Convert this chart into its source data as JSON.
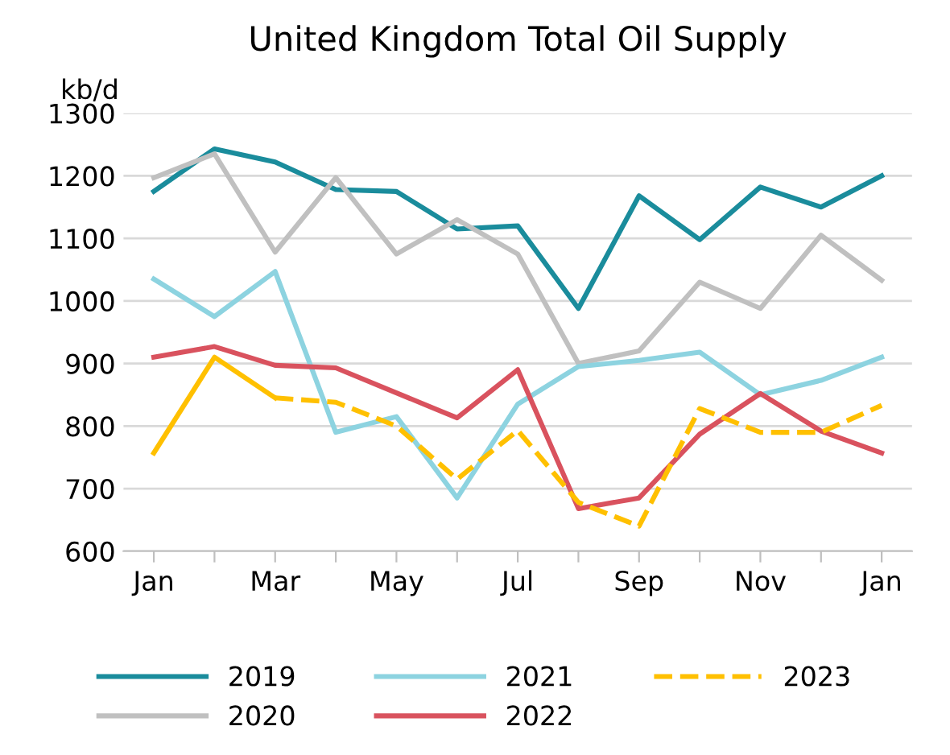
{
  "chart_data": {
    "type": "line",
    "title": "United Kingdom Total Oil Supply",
    "ylabel": "kb/d",
    "categories": [
      "Jan",
      null,
      "Mar",
      null,
      "May",
      null,
      "Jul",
      null,
      "Sep",
      null,
      "Nov",
      null,
      "Jan"
    ],
    "ylim": [
      600,
      1300
    ],
    "yticks": [
      600,
      700,
      800,
      900,
      1000,
      1100,
      1200,
      1300
    ],
    "grid": "y",
    "legend": "bottom",
    "series": [
      {
        "name": "2019",
        "color": "#1a8c9c",
        "line_style": "solid",
        "values": [
          1175,
          1243,
          1222,
          1178,
          1175,
          1115,
          1120,
          988,
          1168,
          1098,
          1182,
          1150,
          1200
        ]
      },
      {
        "name": "2020",
        "color": "#c0c0c0",
        "line_style": "solid",
        "values": [
          1197,
          1235,
          1078,
          1197,
          1075,
          1130,
          1075,
          900,
          920,
          1030,
          988,
          1105,
          1033
        ]
      },
      {
        "name": "2021",
        "color": "#8dd3e0",
        "line_style": "solid",
        "values": [
          1035,
          975,
          1047,
          790,
          815,
          685,
          835,
          895,
          905,
          918,
          850,
          873,
          910
        ]
      },
      {
        "name": "2022",
        "color": "#d9525e",
        "line_style": "solid",
        "values": [
          910,
          927,
          897,
          893,
          853,
          813,
          890,
          668,
          685,
          787,
          852,
          792,
          757
        ]
      },
      {
        "color": "#ffc000",
        "line_style": "solid",
        "values": [
          757,
          910,
          845,
          null,
          null,
          null,
          null,
          null,
          null,
          null,
          null,
          null,
          null
        ]
      },
      {
        "name": "2023",
        "color": "#ffc000",
        "line_style": "dashed",
        "values": [
          null,
          null,
          845,
          838,
          800,
          715,
          793,
          678,
          640,
          828,
          790,
          790,
          833
        ]
      }
    ]
  }
}
